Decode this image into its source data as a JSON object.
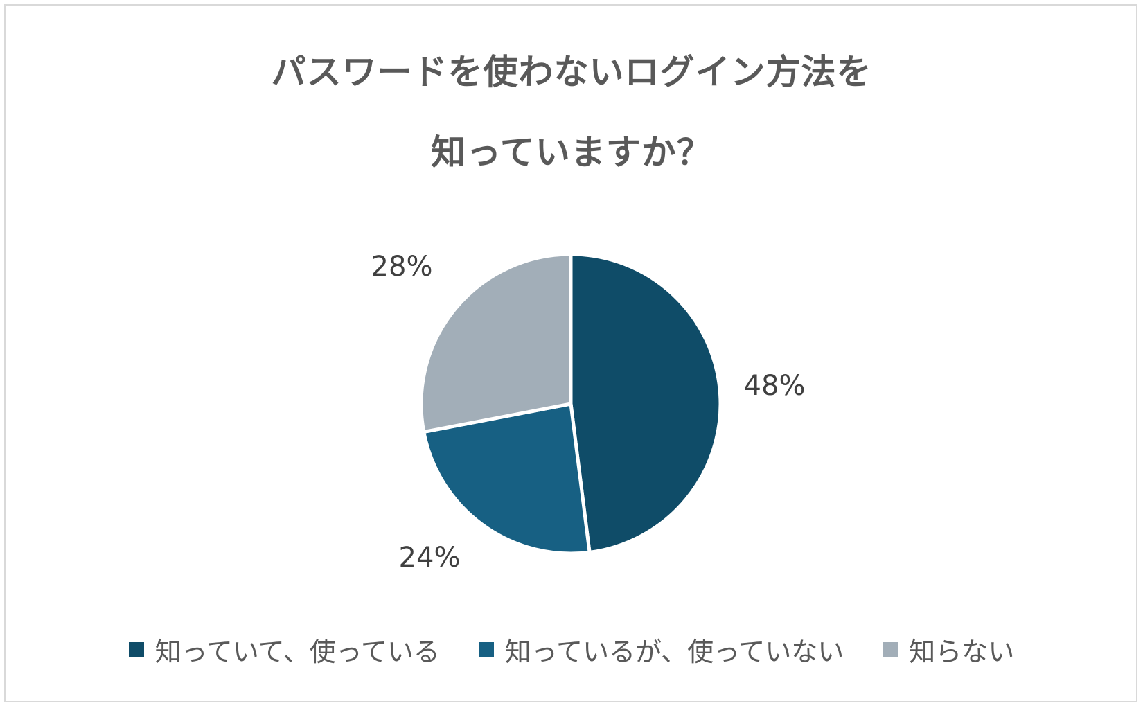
{
  "chart_data": {
    "type": "pie",
    "title_lines": [
      "パスワードを使わないログイン方法を",
      "知っていますか？"
    ],
    "categories": [
      "知っていて、使っている",
      "知っているが、使っていない",
      "知らない"
    ],
    "values": [
      48,
      24,
      28
    ],
    "labels": [
      "48%",
      "24%",
      "28%"
    ],
    "colors": [
      "#0f4c68",
      "#176083",
      "#a2aeb8"
    ],
    "legend_placement": "bottom"
  }
}
